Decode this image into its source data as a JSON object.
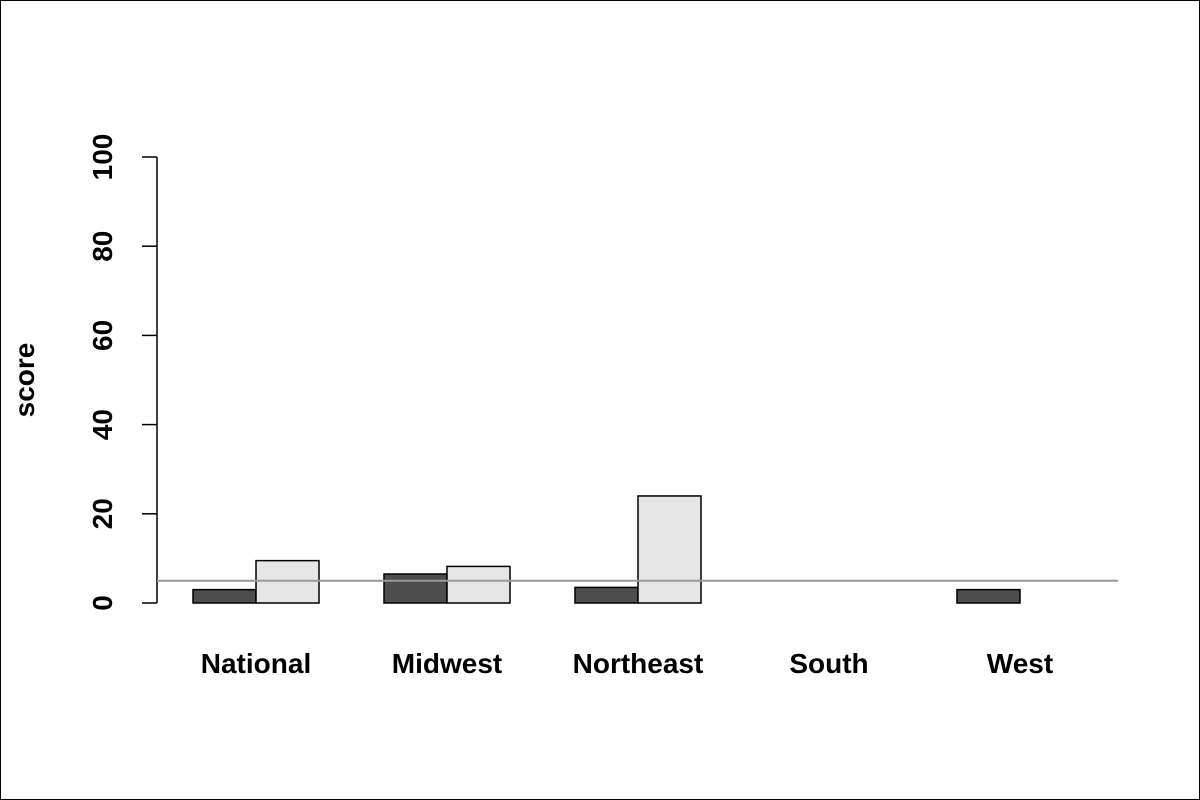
{
  "chart_data": {
    "type": "bar",
    "ylabel": "score",
    "ylim": [
      0,
      100
    ],
    "yticks": [
      "0",
      "20",
      "40",
      "60",
      "80",
      "100"
    ],
    "categories": [
      "National",
      "Midwest",
      "Northeast",
      "South",
      "West"
    ],
    "series": [
      {
        "values": [
          3,
          6.5,
          3.5,
          0,
          3
        ],
        "color": "#4d4d4d"
      },
      {
        "values": [
          9.5,
          8.2,
          24,
          0,
          0
        ],
        "color": "#e6e6e6"
      }
    ],
    "reference_line": {
      "value": 5,
      "color": "#999999"
    },
    "grid": false,
    "legend": "none"
  }
}
